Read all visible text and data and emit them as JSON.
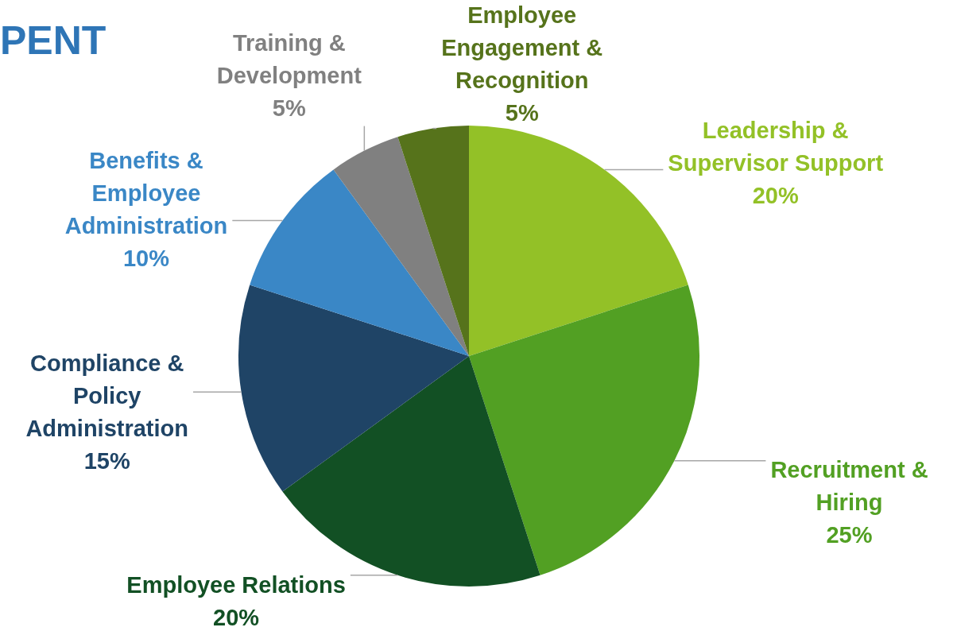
{
  "chart_data": {
    "type": "pie",
    "title": "PENT",
    "categories": [
      "Leadership & Supervisor Support",
      "Recruitment & Hiring",
      "Employee Relations",
      "Compliance & Policy Administration",
      "Benefits & Employee Administration",
      "Training & Development",
      "Employee Engagement & Recognition"
    ],
    "values": [
      20,
      25,
      20,
      15,
      10,
      5,
      5
    ],
    "value_labels": [
      "20%",
      "25%",
      "20%",
      "15%",
      "10%",
      "5%",
      "5%"
    ],
    "colors": [
      "#93c127",
      "#52a023",
      "#125024",
      "#1f4466",
      "#3a87c6",
      "#808080",
      "#56731b"
    ],
    "legend": false
  }
}
